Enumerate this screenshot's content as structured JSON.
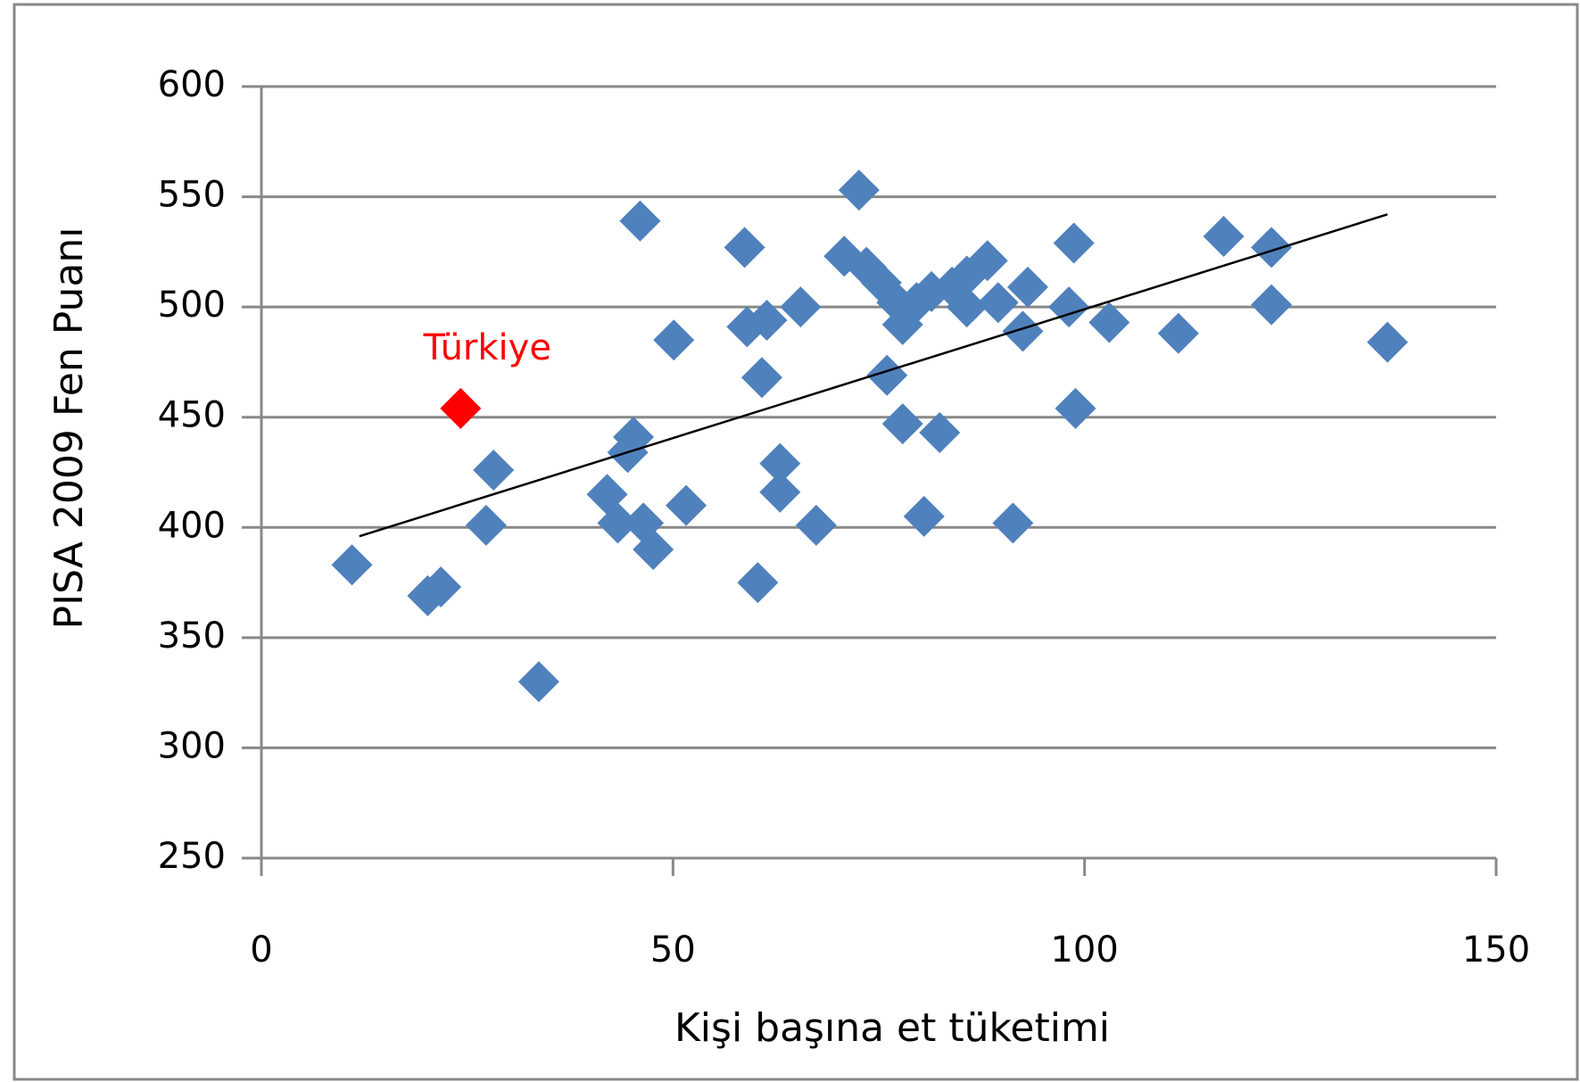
{
  "chart_data": {
    "type": "scatter",
    "x_label": "Kişi başına et tüketimi",
    "y_label": "PISA 2009 Fen Puanı",
    "xlim": [
      0,
      150
    ],
    "xticks": [
      0,
      50,
      100,
      150
    ],
    "ylim": [
      250,
      600
    ],
    "yticks": [
      250,
      300,
      350,
      400,
      450,
      500,
      550,
      600
    ],
    "grid": true,
    "series": [
      {
        "color": "#4f81bd",
        "x": [
          11,
          20.2,
          21.8,
          28.2,
          27.3,
          33.7,
          46,
          42,
          43.3,
          44.5,
          45.2,
          46.4,
          47.6,
          50.1,
          51.6,
          58.7,
          59,
          61.4,
          60.8,
          60.3,
          63,
          63,
          65.5,
          67.4,
          72.6,
          70.8,
          73.5,
          75.3,
          77.2,
          77.9,
          76,
          77.9,
          82.4,
          80.5,
          79.6,
          81.4,
          83.9,
          85.7,
          85.7,
          88.2,
          89.5,
          91.3,
          92.5,
          93.1,
          98.7,
          98.1,
          98.9,
          103,
          111.4,
          116.9,
          122.7,
          122.7,
          136.8
        ],
        "values": [
          383,
          369,
          373,
          426,
          401,
          330,
          539,
          415,
          402,
          434,
          441,
          402,
          390,
          485,
          410,
          527,
          491,
          494,
          468,
          375,
          429,
          416,
          500,
          401,
          553,
          523,
          518,
          511,
          502,
          492,
          469,
          447,
          443,
          405,
          502,
          507,
          509,
          514,
          500,
          521,
          502,
          402,
          489,
          509,
          529,
          500,
          454,
          493,
          488,
          532,
          527,
          501,
          484
        ]
      },
      {
        "name": "Türkiye",
        "color": "#ff0000",
        "x": [
          24.2
        ],
        "values": [
          454
        ]
      }
    ],
    "trendline": {
      "color": "#000000",
      "x": [
        11.9,
        136.8
      ],
      "values": [
        396,
        542
      ]
    }
  }
}
